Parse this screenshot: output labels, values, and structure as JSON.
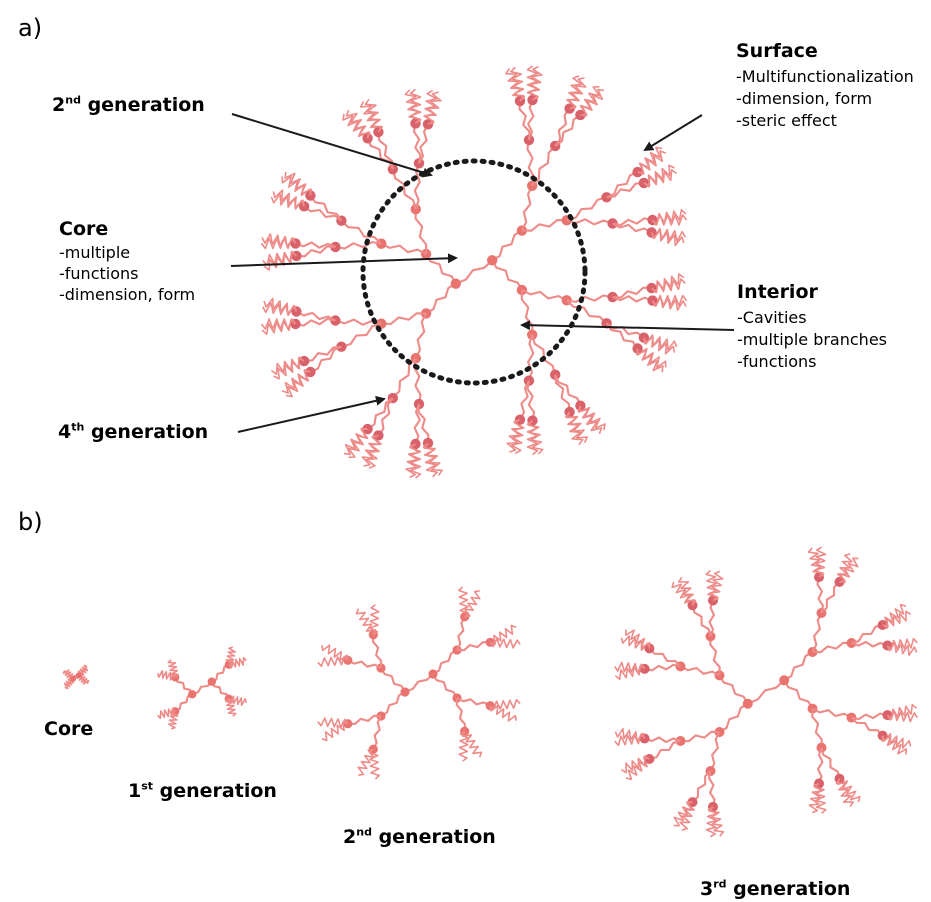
{
  "panel_labels": {
    "a": "a)",
    "b": "b)"
  },
  "annotations": {
    "second_generation": {
      "base": "2",
      "sup": "nd",
      "rest": " generation"
    },
    "core": {
      "title": "Core",
      "lines": [
        "-multiple",
        "-functions",
        "-dimension, form"
      ]
    },
    "fourth_generation": {
      "base": "4",
      "sup": "th",
      "rest": " generation"
    },
    "surface": {
      "title": "Surface",
      "lines": [
        "-Multifunctionalization",
        "-dimension, form",
        "-steric effect"
      ]
    },
    "interior": {
      "title": "Interior",
      "lines": [
        "-Cavities",
        "-multiple branches",
        "-functions"
      ]
    }
  },
  "generation_labels": {
    "core": "Core",
    "first": {
      "base": "1",
      "sup": "st",
      "rest": " generation"
    },
    "second": {
      "base": "2",
      "sup": "nd",
      "rest": " generation"
    },
    "third": {
      "base": "3",
      "sup": "rd",
      "rest": " generation"
    }
  },
  "colors": {
    "branch": "#ee8a88",
    "node": "#e8736f",
    "node_dark": "#d9616a",
    "arrow": "#1a1a1a",
    "dotted_circle": "#1a1a1a"
  }
}
